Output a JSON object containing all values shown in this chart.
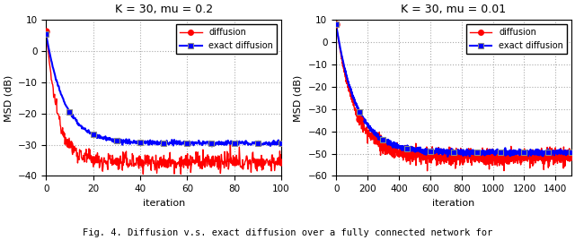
{
  "subplot1": {
    "title": "K = 30, mu = 0.2",
    "xlabel": "iteration",
    "ylabel": "MSD (dB)",
    "xlim": [
      0,
      100
    ],
    "ylim": [
      -40,
      10
    ],
    "yticks": [
      10,
      0,
      -10,
      -20,
      -30,
      -40
    ],
    "xticks": [
      0,
      20,
      40,
      60,
      80,
      100
    ],
    "diffusion_steady": -35.5,
    "exact_diffusion_steady": -29.5,
    "diffusion_start": 6.5,
    "exact_diffusion_start": 5.5,
    "diffusion_tau": 5.0,
    "exact_diffusion_tau": 8.0,
    "diffusion_noise": 1.5,
    "exact_diffusion_noise": 0.4,
    "marker_every_d": 10,
    "marker_every_ed": 10
  },
  "subplot2": {
    "title": "K = 30, mu = 0.01",
    "xlabel": "iteration",
    "ylabel": "MSD (dB)",
    "xlim": [
      0,
      1500
    ],
    "ylim": [
      -60,
      10
    ],
    "yticks": [
      10,
      0,
      -10,
      -20,
      -30,
      -40,
      -50,
      -60
    ],
    "xticks": [
      0,
      200,
      400,
      600,
      800,
      1000,
      1200,
      1400
    ],
    "diffusion_steady": -51.5,
    "exact_diffusion_steady": -49.5,
    "diffusion_start": 8.0,
    "exact_diffusion_start": 8.0,
    "diffusion_tau": 120.0,
    "exact_diffusion_tau": 130.0,
    "diffusion_noise": 1.8,
    "exact_diffusion_noise": 0.6,
    "marker_every_d": 150,
    "marker_every_ed": 150
  },
  "color_diffusion": "#ff0000",
  "color_exact_diffusion": "#0000ff",
  "marker_diffusion": "o",
  "marker_exact_diffusion": "s",
  "legend_labels": [
    "diffusion",
    "exact diffusion"
  ],
  "background_color": "#ffffff",
  "grid_color": "#aaaaaa",
  "caption": "Fig. 4. Diffusion v.s. exact diffusion over a fully connected network for"
}
